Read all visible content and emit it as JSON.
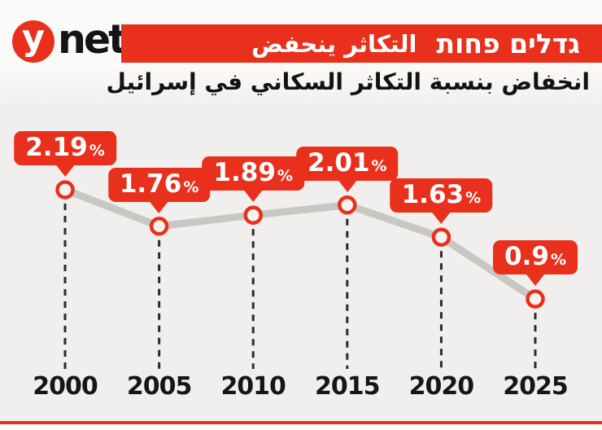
{
  "brand": {
    "logo_y": "y",
    "logo_net": "net"
  },
  "header": {
    "banner_title_hebrew": "גדלים פחות",
    "banner_title_arabic": "التكاثر ينحفض",
    "subtitle_arabic": "انخفاض بنسبة التكاثر السكاني في إسرائيل"
  },
  "colors": {
    "accent_red": "#e8301c",
    "line_gray": "#c9c7c4",
    "dash_dark": "#2b2b2b",
    "background": "#f0efed"
  },
  "chart_data": {
    "type": "line",
    "title": "גדלים פחות / التكاثر ينحفض",
    "subtitle": "انخفاض بنسبة التكاثر السكاني في إسرائيل",
    "categories": [
      "2000",
      "2005",
      "2010",
      "2015",
      "2020",
      "2025"
    ],
    "values": [
      2.19,
      1.76,
      1.89,
      2.01,
      1.63,
      0.9
    ],
    "labels": [
      "2.19",
      "1.76",
      "1.89",
      "2.01",
      "1.63",
      "0.9"
    ],
    "unit": "%",
    "xlabel": "",
    "ylabel": "",
    "ylim": [
      0.8,
      2.3
    ],
    "grid": false,
    "legend": "none",
    "marker": "white circle with red ring",
    "annotations": "red value callout above every point; dashed drop line to year label"
  }
}
